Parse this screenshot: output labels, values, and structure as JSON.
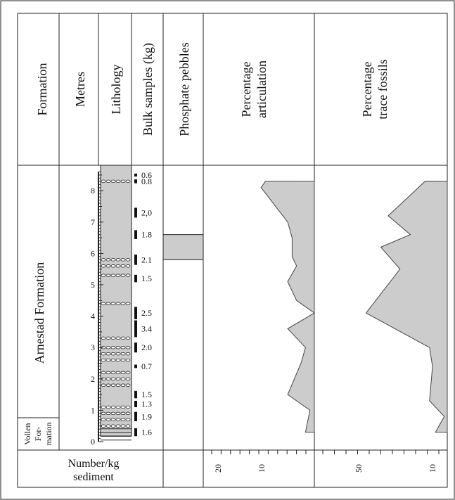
{
  "columns": {
    "formation": "Formation",
    "metres": "Metres",
    "lithology": "Lithology",
    "bulk_samples": "Bulk samples (kg)",
    "phosphate": "Phosphate pebbles",
    "articulation": [
      "Percentage",
      "articulation"
    ],
    "trace_fossils": [
      "Percentage",
      "trace fossils"
    ]
  },
  "formations": {
    "upper": "Arnestad Formation",
    "lower": [
      "Vollen",
      "For-",
      "mation"
    ]
  },
  "footer": {
    "number_per_kg": [
      "Number/kg",
      "sediment"
    ]
  },
  "chart_data": {
    "type": "area",
    "y_axis": {
      "label": "Metres",
      "range": [
        0,
        8.6
      ],
      "ticks": [
        "0",
        "1",
        "2",
        "3",
        "4",
        "5",
        "6",
        "7",
        "8"
      ]
    },
    "bulk_samples": [
      {
        "m": 8.5,
        "label": "0.6",
        "kg": 0.6
      },
      {
        "m": 8.3,
        "label": "0.8",
        "kg": 0.8
      },
      {
        "m": 7.3,
        "label": "2,0",
        "kg": 2.0
      },
      {
        "m": 6.6,
        "label": "1.8",
        "kg": 1.8
      },
      {
        "m": 5.8,
        "label": "2.1",
        "kg": 2.1
      },
      {
        "m": 5.2,
        "label": "1.5",
        "kg": 1.5
      },
      {
        "m": 4.1,
        "label": "2.5",
        "kg": 2.5
      },
      {
        "m": 3.6,
        "label": "3.4",
        "kg": 3.4
      },
      {
        "m": 3.0,
        "label": "2.0",
        "kg": 2.0
      },
      {
        "m": 2.4,
        "label": "0.7",
        "kg": 0.7
      },
      {
        "m": 1.5,
        "label": "1.5",
        "kg": 1.5
      },
      {
        "m": 1.2,
        "label": "1.3",
        "kg": 1.3
      },
      {
        "m": 0.8,
        "label": "1.9",
        "kg": 1.9
      },
      {
        "m": 0.3,
        "label": "1.6",
        "kg": 1.6
      }
    ],
    "phosphate_interval": [
      5.8,
      6.6
    ],
    "articulation": {
      "axis_ticks": [
        "20",
        "10"
      ],
      "x_range": [
        25,
        0
      ],
      "points": [
        [
          8.3,
          11
        ],
        [
          8.1,
          12
        ],
        [
          7.0,
          6
        ],
        [
          6.5,
          5
        ],
        [
          5.9,
          5
        ],
        [
          5.6,
          4
        ],
        [
          5.1,
          6
        ],
        [
          4.5,
          4
        ],
        [
          4.1,
          0
        ],
        [
          3.6,
          6
        ],
        [
          3.0,
          2
        ],
        [
          2.5,
          3
        ],
        [
          1.5,
          6
        ],
        [
          1.0,
          1
        ],
        [
          0.3,
          2
        ]
      ],
      "floor_m": 0.3
    },
    "trace_fossils": {
      "axis_ticks": [
        "50",
        "10"
      ],
      "x_range": [
        90,
        0
      ],
      "points": [
        [
          8.3,
          15
        ],
        [
          7.2,
          40
        ],
        [
          6.6,
          25
        ],
        [
          6.2,
          45
        ],
        [
          5.5,
          32
        ],
        [
          4.1,
          55
        ],
        [
          3.0,
          12
        ],
        [
          2.4,
          10
        ],
        [
          1.3,
          12
        ],
        [
          0.8,
          2
        ],
        [
          0.3,
          8
        ]
      ],
      "floor_m": 0.3
    }
  }
}
